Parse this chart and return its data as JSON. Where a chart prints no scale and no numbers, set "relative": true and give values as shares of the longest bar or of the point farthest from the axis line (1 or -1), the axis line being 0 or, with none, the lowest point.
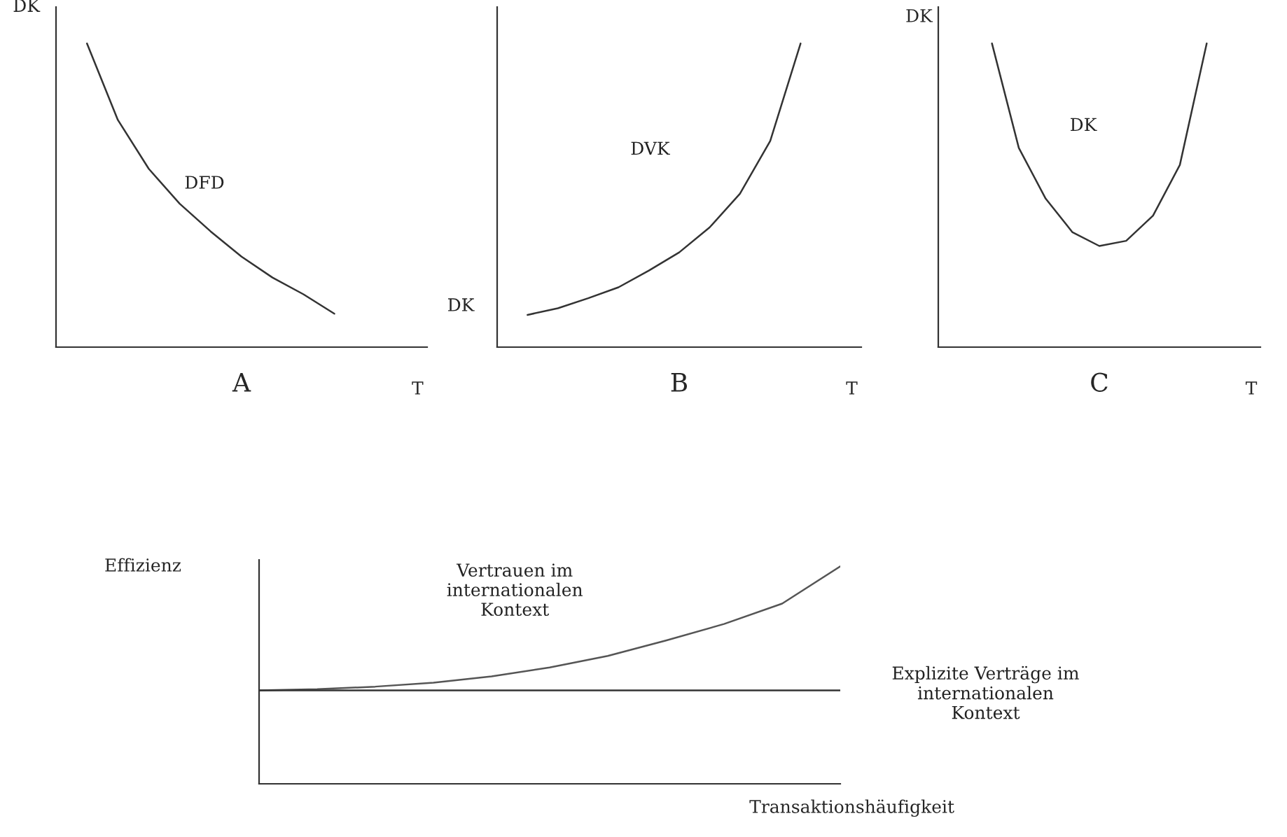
{
  "chart_data": [
    {
      "type": "line",
      "relative": true,
      "title": "A",
      "xlabel": "T",
      "ylabel": "DK",
      "categories": [
        null,
        null,
        null,
        null,
        null,
        null,
        null,
        null,
        null,
        null,
        null
      ],
      "series": [
        {
          "name": "DFD",
          "color": "#333333",
          "values": [
            1,
            0.748,
            0.587,
            0.472,
            0.381,
            0.298,
            0.229,
            0.174,
            0.11,
            null,
            null
          ]
        }
      ],
      "grid": false,
      "legend": false
    },
    {
      "type": "line",
      "relative": true,
      "title": "B",
      "xlabel": "T",
      "ylabel": "DK",
      "categories": [
        null,
        null,
        null,
        null,
        null,
        null,
        null,
        null,
        null,
        null,
        null
      ],
      "series": [
        {
          "name": "DVK",
          "color": "#333333",
          "values": [
            0.106,
            0.128,
            0.161,
            0.197,
            0.252,
            0.312,
            0.394,
            0.505,
            0.679,
            1,
            null
          ]
        }
      ],
      "grid": false,
      "legend": false
    },
    {
      "type": "line",
      "relative": true,
      "title": "C",
      "xlabel": "T",
      "ylabel": "DK",
      "categories": [
        null,
        null,
        null,
        null,
        null,
        null,
        null,
        null,
        null,
        null,
        null
      ],
      "series": [
        {
          "name": "DK",
          "color": "#333333",
          "values": [
            null,
            1,
            0.656,
            0.489,
            0.378,
            0.333,
            0.35,
            0.433,
            0.6,
            1,
            null
          ]
        }
      ],
      "grid": false,
      "legend": false
    },
    {
      "type": "line",
      "relative": true,
      "xlabel": "Transaktionshäufigkeit",
      "ylabel": "Effizienz",
      "categories": [
        null,
        null,
        null,
        null,
        null,
        null,
        null,
        null,
        null,
        null,
        null
      ],
      "series": [
        {
          "name": "Vertrauen im\ninternationalen\nKontext",
          "color": "#555555",
          "values": [
            0.43,
            0.435,
            0.447,
            0.465,
            0.494,
            0.535,
            0.588,
            0.659,
            0.735,
            0.829,
            1
          ]
        },
        {
          "name": "Explizite Verträge im\ninternationalen\nKontext",
          "color": "#333333",
          "values": [
            0.43,
            0.43,
            0.43,
            0.43,
            0.43,
            0.43,
            0.43,
            0.43,
            0.43,
            0.43,
            0.43
          ]
        }
      ],
      "grid": false,
      "legend": false
    }
  ]
}
